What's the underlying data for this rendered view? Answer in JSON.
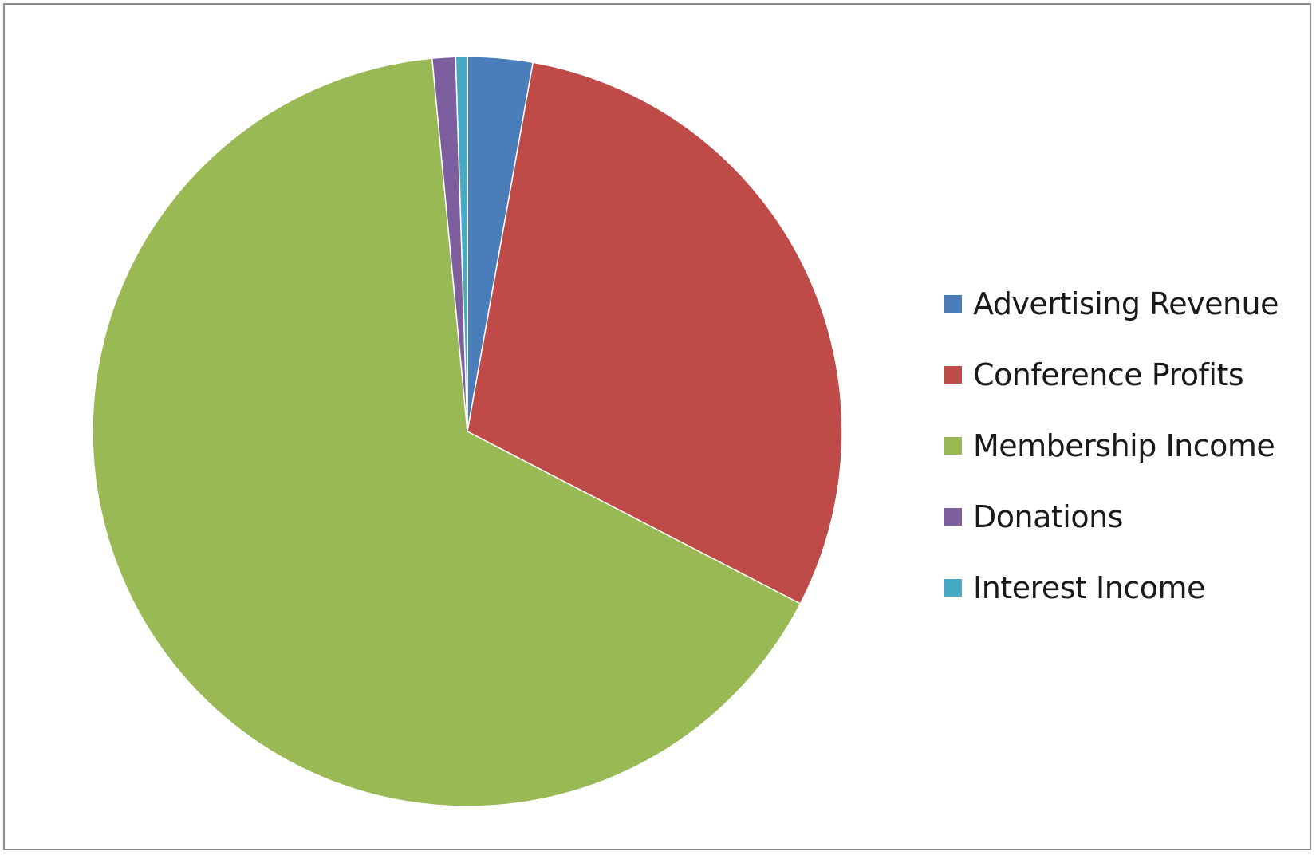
{
  "chart_data": {
    "type": "pie",
    "title": "",
    "categories": [
      "Advertising Revenue",
      "Conference Profits",
      "Membership Income",
      "Donations",
      "Interest Income"
    ],
    "values": [
      2.8,
      29.8,
      65.9,
      1.0,
      0.5
    ],
    "colors": [
      "#4a7ebb",
      "#be4b48",
      "#98b954",
      "#7d5fa0",
      "#46aac5"
    ],
    "start_angle_deg": 0,
    "direction": "clockwise",
    "legend_position": "right"
  }
}
